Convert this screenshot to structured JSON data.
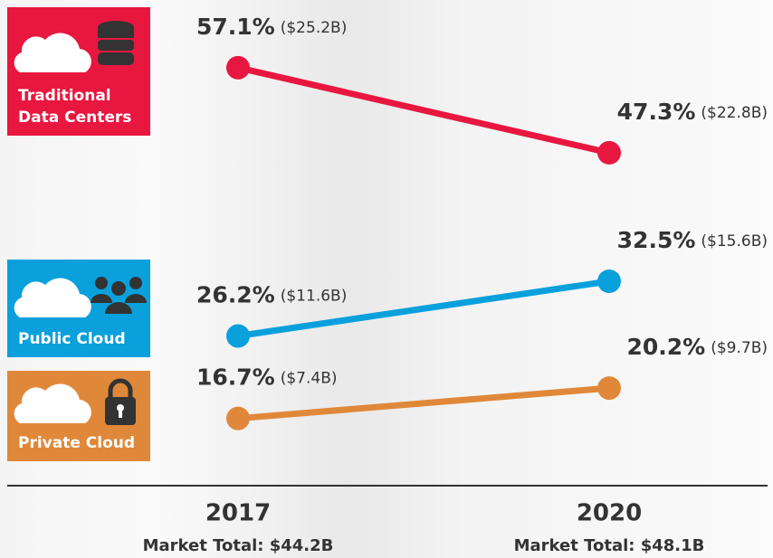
{
  "chart_data": {
    "type": "line",
    "categories": [
      "2017",
      "2020"
    ],
    "totals": [
      "Market Total: $44.2B",
      "Market Total: $48.1B"
    ],
    "ylim": [
      10,
      60
    ],
    "series": [
      {
        "name": "Traditional Data Centers",
        "color": "#e8173f",
        "values": [
          57.1,
          47.3
        ],
        "value_labels": [
          "57.1%",
          "47.3%"
        ],
        "amounts": [
          "($25.2B)",
          "($22.8B)"
        ]
      },
      {
        "name": "Public Cloud",
        "color": "#0aa0dc",
        "values": [
          26.2,
          32.5
        ],
        "value_labels": [
          "26.2%",
          "32.5%"
        ],
        "amounts": [
          "($11.6B)",
          "($15.6B)"
        ]
      },
      {
        "name": "Private Cloud",
        "color": "#e0883a",
        "values": [
          16.7,
          20.2
        ],
        "value_labels": [
          "16.7%",
          "20.2%"
        ],
        "amounts": [
          "($7.4B)",
          "($9.7B)"
        ]
      }
    ]
  }
}
